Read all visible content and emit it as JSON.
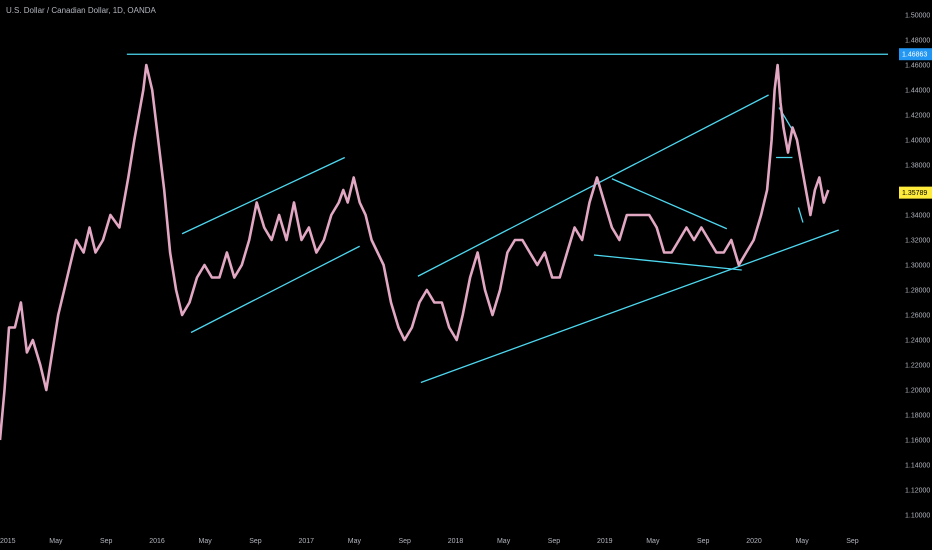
{
  "chart_data": {
    "type": "line",
    "title": "U.S. Dollar / Canadian Dollar, 1D, OANDA",
    "ylim": [
      1.09,
      1.51
    ],
    "y_ticks": [
      "1.50000",
      "1.48000",
      "1.46000",
      "1.44000",
      "1.42000",
      "1.40000",
      "1.38000",
      "1.36000",
      "1.34000",
      "1.32000",
      "1.30000",
      "1.28000",
      "1.26000",
      "1.24000",
      "1.22000",
      "1.20000",
      "1.18000",
      "1.16000",
      "1.14000",
      "1.12000",
      "1.10000"
    ],
    "x_ticks": [
      "2015",
      "May",
      "Sep",
      "2016",
      "May",
      "Sep",
      "2017",
      "May",
      "Sep",
      "2018",
      "May",
      "Sep",
      "2019",
      "May",
      "Sep",
      "2020",
      "May",
      "Sep"
    ],
    "price_labels": {
      "high": {
        "text": "1.46863",
        "value": 1.46863,
        "color": "#2196f3"
      },
      "last": {
        "text": "1.35789",
        "value": 1.35789,
        "color": "#ffeb3b"
      }
    },
    "series": [
      {
        "color": "#e2a7c3",
        "x": [
          2015.0,
          2015.03,
          2015.06,
          2015.1,
          2015.14,
          2015.18,
          2015.22,
          2015.27,
          2015.31,
          2015.35,
          2015.39,
          2015.43,
          2015.47,
          2015.51,
          2015.56,
          2015.6,
          2015.64,
          2015.69,
          2015.74,
          2015.8,
          2015.86,
          2015.9,
          2015.93,
          2015.96,
          2015.98,
          2016.02,
          2016.06,
          2016.1,
          2016.14,
          2016.18,
          2016.22,
          2016.27,
          2016.32,
          2016.37,
          2016.42,
          2016.47,
          2016.52,
          2016.57,
          2016.62,
          2016.67,
          2016.72,
          2016.77,
          2016.82,
          2016.87,
          2016.92,
          2016.97,
          2017.02,
          2017.07,
          2017.12,
          2017.17,
          2017.22,
          2017.27,
          2017.3,
          2017.33,
          2017.37,
          2017.41,
          2017.45,
          2017.49,
          2017.53,
          2017.57,
          2017.62,
          2017.67,
          2017.71,
          2017.76,
          2017.81,
          2017.86,
          2017.91,
          2017.96,
          2018.01,
          2018.06,
          2018.1,
          2018.15,
          2018.2,
          2018.25,
          2018.3,
          2018.35,
          2018.4,
          2018.45,
          2018.5,
          2018.55,
          2018.6,
          2018.65,
          2018.7,
          2018.75,
          2018.8,
          2018.85,
          2018.9,
          2018.95,
          2019.0,
          2019.05,
          2019.1,
          2019.15,
          2019.2,
          2019.25,
          2019.3,
          2019.35,
          2019.4,
          2019.45,
          2019.5,
          2019.55,
          2019.6,
          2019.65,
          2019.7,
          2019.75,
          2019.8,
          2019.85,
          2019.9,
          2019.95,
          2020.0,
          2020.05,
          2020.1,
          2020.14,
          2020.17,
          2020.19,
          2020.21,
          2020.23,
          2020.25,
          2020.28,
          2020.31,
          2020.34,
          2020.37,
          2020.4,
          2020.43,
          2020.46,
          2020.49,
          2020.52,
          2020.55
        ],
        "y": [
          1.16,
          1.2,
          1.25,
          1.25,
          1.27,
          1.23,
          1.24,
          1.22,
          1.2,
          1.23,
          1.26,
          1.28,
          1.3,
          1.32,
          1.31,
          1.33,
          1.31,
          1.32,
          1.34,
          1.33,
          1.37,
          1.4,
          1.42,
          1.44,
          1.46,
          1.44,
          1.4,
          1.36,
          1.31,
          1.28,
          1.26,
          1.27,
          1.29,
          1.3,
          1.29,
          1.29,
          1.31,
          1.29,
          1.3,
          1.32,
          1.35,
          1.33,
          1.32,
          1.34,
          1.32,
          1.35,
          1.32,
          1.33,
          1.31,
          1.32,
          1.34,
          1.35,
          1.36,
          1.35,
          1.37,
          1.35,
          1.34,
          1.32,
          1.31,
          1.3,
          1.27,
          1.25,
          1.24,
          1.25,
          1.27,
          1.28,
          1.27,
          1.27,
          1.25,
          1.24,
          1.26,
          1.29,
          1.31,
          1.28,
          1.26,
          1.28,
          1.31,
          1.32,
          1.32,
          1.31,
          1.3,
          1.31,
          1.29,
          1.29,
          1.31,
          1.33,
          1.32,
          1.35,
          1.37,
          1.35,
          1.33,
          1.32,
          1.34,
          1.34,
          1.34,
          1.34,
          1.33,
          1.31,
          1.31,
          1.32,
          1.33,
          1.32,
          1.33,
          1.32,
          1.31,
          1.31,
          1.32,
          1.3,
          1.31,
          1.32,
          1.34,
          1.36,
          1.4,
          1.44,
          1.46,
          1.43,
          1.41,
          1.39,
          1.41,
          1.4,
          1.38,
          1.36,
          1.34,
          1.36,
          1.37,
          1.35,
          1.36
        ]
      }
    ],
    "annotations": [
      {
        "type": "hline",
        "y": 1.46863,
        "x0": 2015.85
      },
      {
        "type": "segment",
        "from": [
          2016.22,
          1.325
        ],
        "to": [
          2017.31,
          1.386
        ]
      },
      {
        "type": "segment",
        "from": [
          2016.28,
          1.246
        ],
        "to": [
          2017.41,
          1.315
        ]
      },
      {
        "type": "segment",
        "from": [
          2017.8,
          1.291
        ],
        "to": [
          2020.15,
          1.436
        ]
      },
      {
        "type": "segment",
        "from": [
          2017.82,
          1.206
        ],
        "to": [
          2020.62,
          1.328
        ]
      },
      {
        "type": "segment",
        "from": [
          2019.1,
          1.369
        ],
        "to": [
          2019.87,
          1.329
        ]
      },
      {
        "type": "segment",
        "from": [
          2018.98,
          1.308
        ],
        "to": [
          2019.97,
          1.296
        ]
      },
      {
        "type": "segment",
        "from": [
          2020.22,
          1.426
        ],
        "to": [
          2020.32,
          1.406
        ]
      },
      {
        "type": "segment",
        "from": [
          2020.2,
          1.386
        ],
        "to": [
          2020.31,
          1.386
        ]
      },
      {
        "type": "segment",
        "from": [
          2020.35,
          1.346
        ],
        "to": [
          2020.38,
          1.334
        ]
      }
    ]
  }
}
